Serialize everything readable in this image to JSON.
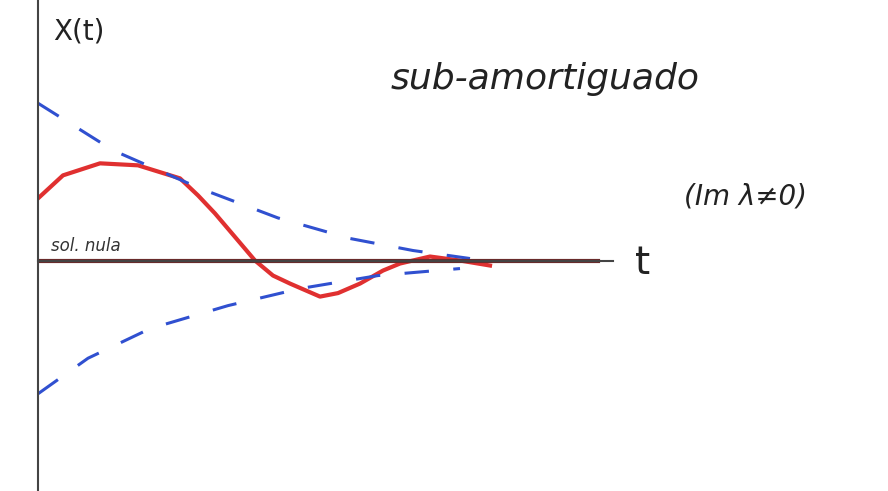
{
  "chart_data": {
    "type": "line",
    "x_label": "t",
    "y_label": "X(t)",
    "annotations": [
      "sub-amortiguado",
      "(Im λ≠0)"
    ],
    "xlim": [
      0,
      11.5
    ],
    "ylim": [
      -4.6,
      5.2
    ],
    "tick_labels": false,
    "grid": false,
    "series": [
      {
        "color": "#e03030",
        "line_style": "solid",
        "x": [
          0,
          0.5,
          1.24,
          2.0,
          2.84,
          3.2,
          3.54,
          4.0,
          4.34,
          4.7,
          5.04,
          5.64,
          6.0,
          6.44,
          6.9,
          7.24,
          7.84,
          8.44,
          9.04
        ],
        "values": [
          1.24,
          1.7,
          1.94,
          1.9,
          1.64,
          1.3,
          0.94,
          0.4,
          0.0,
          -0.3,
          -0.46,
          -0.72,
          -0.65,
          -0.46,
          -0.2,
          -0.06,
          0.08,
          0.0,
          -0.1
        ]
      },
      {
        "color": "#3050d0",
        "line_style": "dashed",
        "x": [
          0,
          1.5,
          3.24,
          4.8,
          6.24,
          7.5,
          8.64
        ],
        "values": [
          3.14,
          2.2,
          1.44,
          0.85,
          0.44,
          0.2,
          0.04
        ]
      },
      {
        "color": "#3050d0",
        "line_style": "dashed",
        "x": [
          0,
          1.0,
          2.24,
          3.8,
          5.24,
          6.8,
          8.44
        ],
        "values": [
          -2.66,
          -1.95,
          -1.36,
          -0.9,
          -0.56,
          -0.3,
          -0.16
        ]
      },
      {
        "name": "sol. nula",
        "color": "#6a2a2a",
        "line_style": "solid",
        "x": [
          0,
          11.2
        ],
        "values": [
          0,
          0
        ]
      }
    ]
  }
}
